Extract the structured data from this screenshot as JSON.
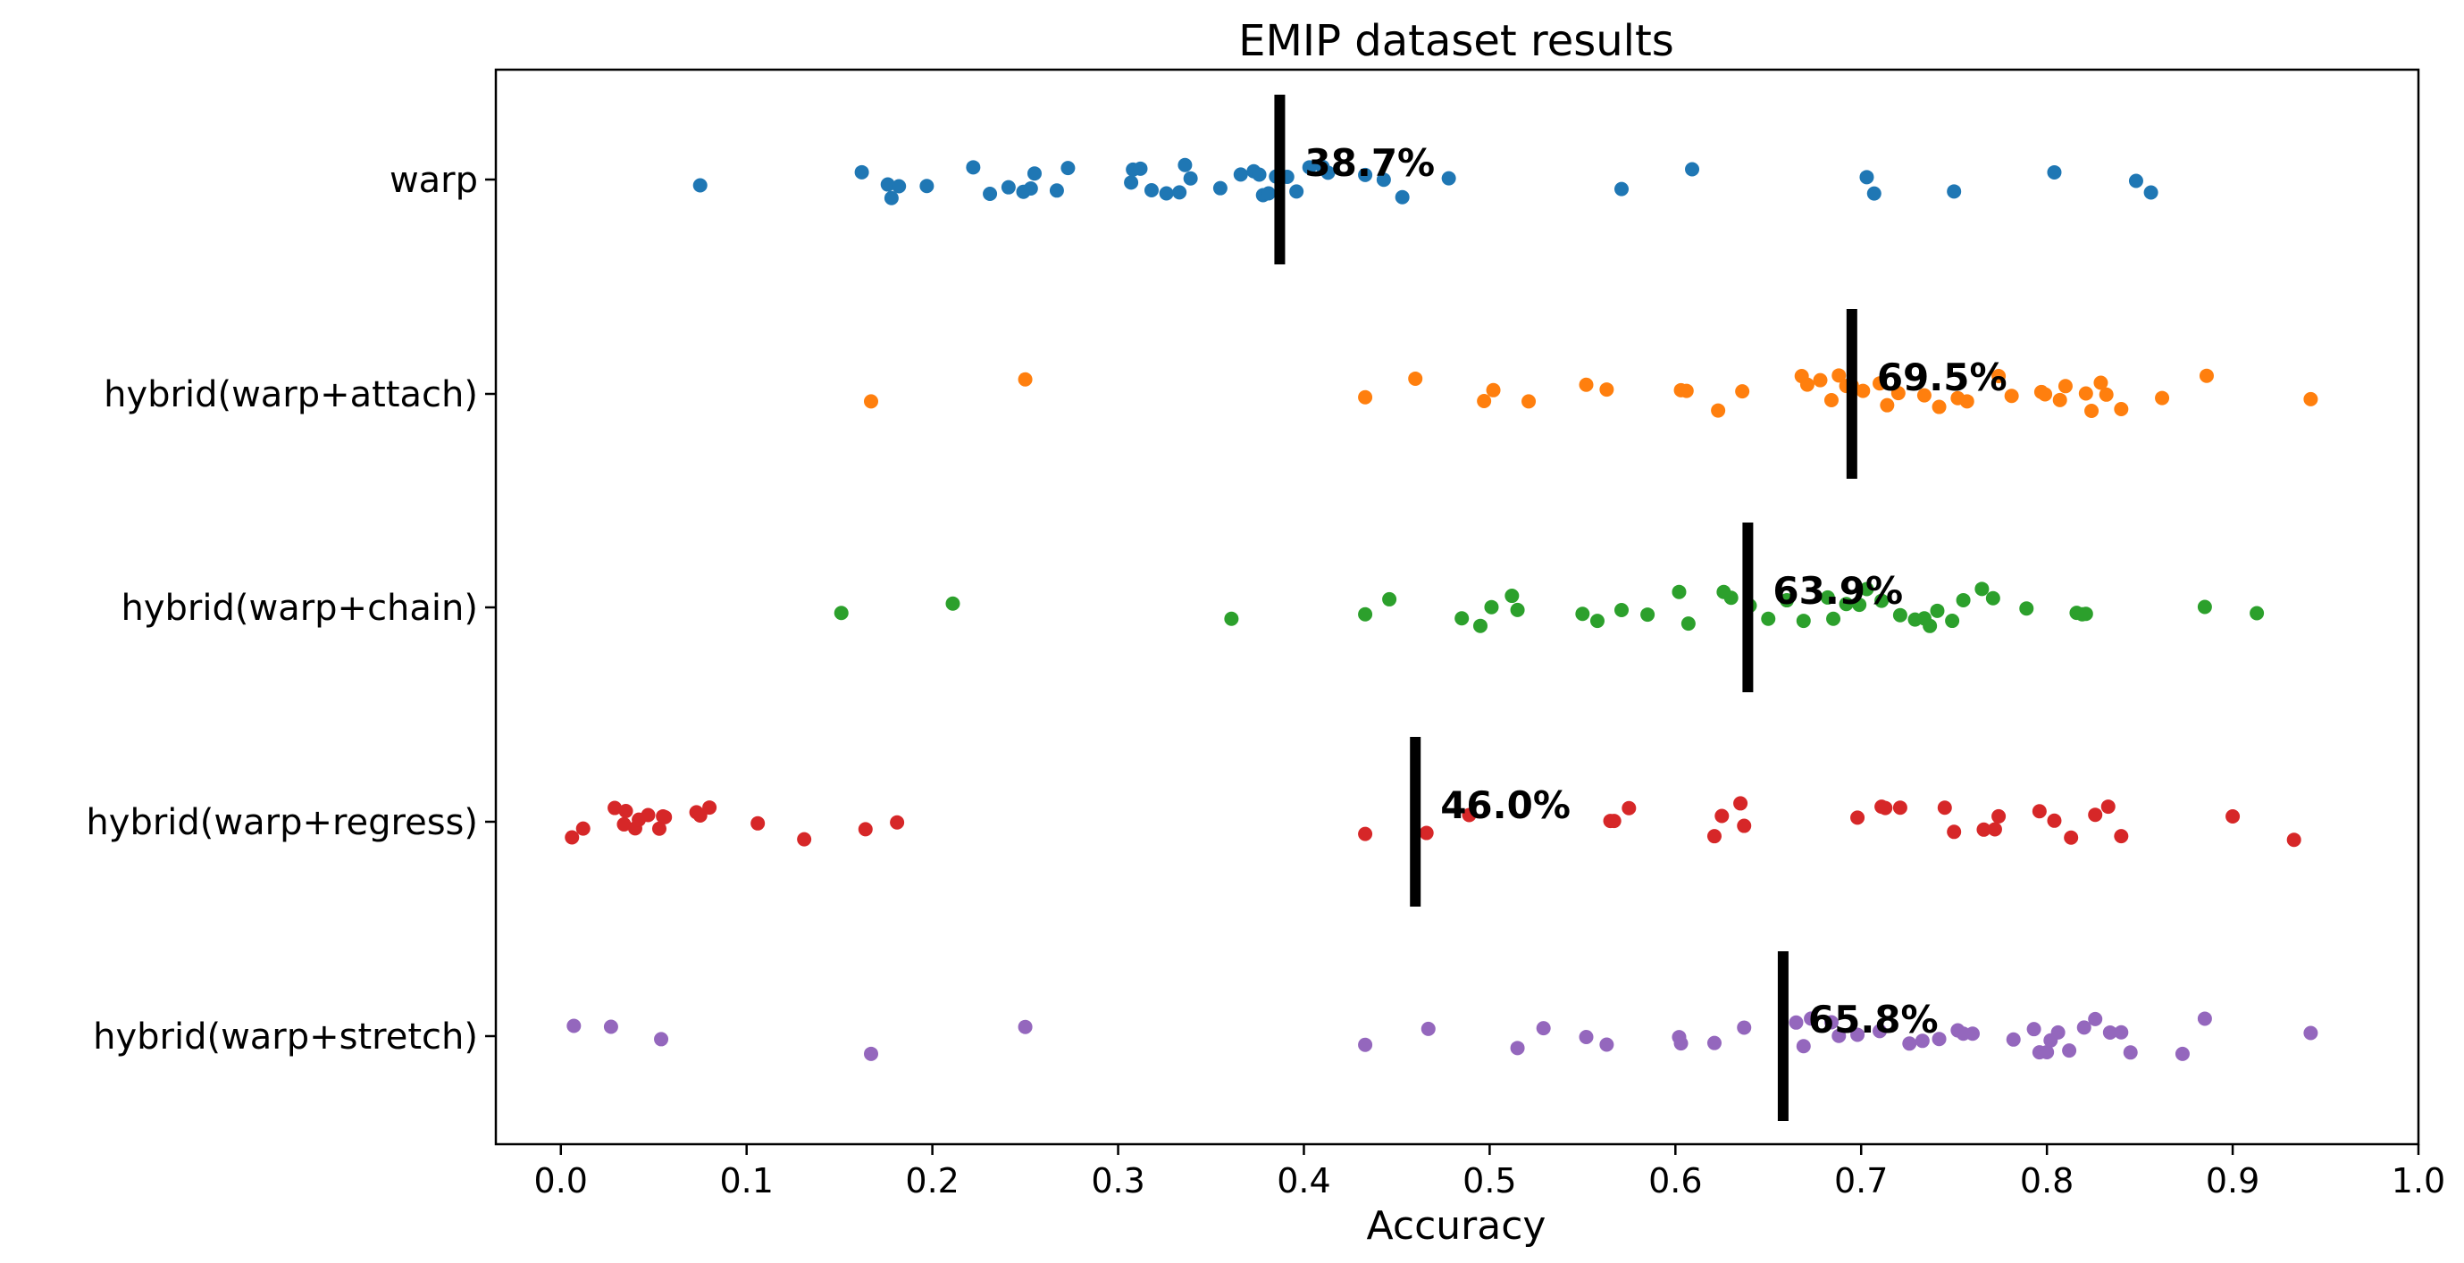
{
  "chart_data": {
    "type": "scatter",
    "title": "EMIP dataset results",
    "xlabel": "Accuracy",
    "ylabel": "",
    "xlim": [
      -0.035,
      1.0
    ],
    "xticks": [
      "0.0",
      "0.1",
      "0.2",
      "0.3",
      "0.4",
      "0.5",
      "0.6",
      "0.7",
      "0.8",
      "0.9",
      "1.0"
    ],
    "grid": false,
    "legend": "none",
    "categories": [
      "warp",
      "hybrid(warp+attach)",
      "hybrid(warp+chain)",
      "hybrid(warp+regress)",
      "hybrid(warp+stretch)"
    ],
    "series": [
      {
        "color": "#1f77b4",
        "mean": 0.387,
        "mean_label": "38.7%",
        "points": [
          0.075,
          0.162,
          0.176,
          0.178,
          0.182,
          0.197,
          0.222,
          0.231,
          0.241,
          0.249,
          0.253,
          0.255,
          0.267,
          0.273,
          0.307,
          0.308,
          0.312,
          0.318,
          0.326,
          0.333,
          0.336,
          0.339,
          0.355,
          0.366,
          0.373,
          0.376,
          0.378,
          0.381,
          0.385,
          0.391,
          0.396,
          0.403,
          0.41,
          0.413,
          0.433,
          0.443,
          0.453,
          0.478,
          0.571,
          0.609,
          0.703,
          0.707,
          0.75,
          0.804,
          0.848,
          0.856
        ]
      },
      {
        "color": "#ff7f0e",
        "mean": 0.695,
        "mean_label": "69.5%",
        "points": [
          0.167,
          0.25,
          0.433,
          0.46,
          0.497,
          0.502,
          0.521,
          0.552,
          0.563,
          0.603,
          0.606,
          0.623,
          0.636,
          0.668,
          0.671,
          0.678,
          0.684,
          0.688,
          0.692,
          0.695,
          0.701,
          0.71,
          0.714,
          0.72,
          0.734,
          0.742,
          0.752,
          0.757,
          0.774,
          0.781,
          0.797,
          0.799,
          0.807,
          0.81,
          0.821,
          0.824,
          0.829,
          0.832,
          0.84,
          0.862,
          0.886,
          0.942
        ]
      },
      {
        "color": "#2ca02c",
        "mean": 0.639,
        "mean_label": "63.9%",
        "points": [
          0.151,
          0.211,
          0.361,
          0.433,
          0.446,
          0.485,
          0.495,
          0.501,
          0.512,
          0.515,
          0.55,
          0.558,
          0.571,
          0.585,
          0.602,
          0.607,
          0.626,
          0.63,
          0.64,
          0.65,
          0.66,
          0.669,
          0.682,
          0.685,
          0.692,
          0.699,
          0.703,
          0.711,
          0.721,
          0.729,
          0.734,
          0.737,
          0.741,
          0.749,
          0.755,
          0.765,
          0.771,
          0.789,
          0.816,
          0.819,
          0.821,
          0.885,
          0.913
        ]
      },
      {
        "color": "#d62728",
        "mean": 0.46,
        "mean_label": "46.0%",
        "points": [
          0.006,
          0.012,
          0.029,
          0.034,
          0.035,
          0.04,
          0.042,
          0.047,
          0.053,
          0.055,
          0.056,
          0.073,
          0.075,
          0.08,
          0.106,
          0.131,
          0.164,
          0.181,
          0.433,
          0.466,
          0.489,
          0.565,
          0.567,
          0.575,
          0.621,
          0.625,
          0.635,
          0.637,
          0.698,
          0.711,
          0.713,
          0.721,
          0.745,
          0.75,
          0.766,
          0.772,
          0.774,
          0.796,
          0.804,
          0.813,
          0.826,
          0.833,
          0.84,
          0.9,
          0.933
        ]
      },
      {
        "color": "#9467bd",
        "mean": 0.658,
        "mean_label": "65.8%",
        "points": [
          0.007,
          0.027,
          0.054,
          0.167,
          0.25,
          0.433,
          0.467,
          0.515,
          0.529,
          0.552,
          0.563,
          0.602,
          0.603,
          0.621,
          0.637,
          0.665,
          0.669,
          0.673,
          0.684,
          0.688,
          0.698,
          0.71,
          0.726,
          0.733,
          0.742,
          0.752,
          0.755,
          0.76,
          0.782,
          0.793,
          0.796,
          0.8,
          0.802,
          0.806,
          0.812,
          0.82,
          0.826,
          0.834,
          0.84,
          0.845,
          0.873,
          0.885,
          0.942
        ]
      }
    ]
  }
}
